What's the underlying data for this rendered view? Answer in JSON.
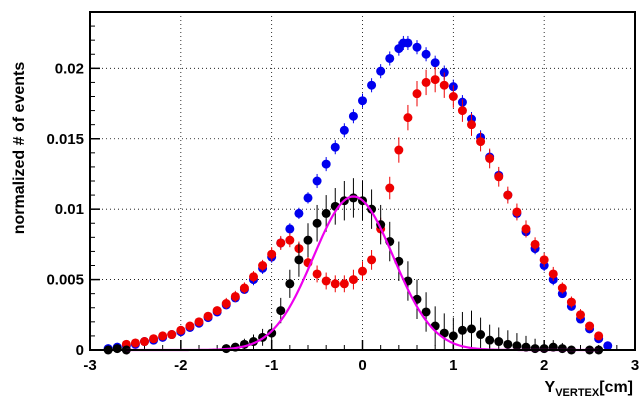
{
  "chart_data": {
    "type": "scatter",
    "title": "",
    "ylabel": "normalized # of events",
    "xlabel_main": "Y",
    "xlabel_sub": "VERTEX",
    "xlabel_unit": "[cm]",
    "xlim": [
      -3,
      3
    ],
    "ylim": [
      0,
      0.024
    ],
    "x_ticks": [
      "-3",
      "-2",
      "-1",
      "0",
      "1",
      "2",
      "3"
    ],
    "y_ticks": [
      "0",
      "0.005",
      "0.01",
      "0.015",
      "0.02"
    ],
    "grid": true,
    "colors": {
      "blue": "#0000ee",
      "red": "#ee0000",
      "black": "#000000",
      "fit": "#ee00ee"
    },
    "series": [
      {
        "color_key": "blue",
        "points": [
          [
            -2.8,
            0.0001,
            0.0003
          ],
          [
            -2.7,
            0.0002,
            0.0003
          ],
          [
            -2.6,
            0.0003,
            0.0003
          ],
          [
            -2.5,
            0.0004,
            0.0003
          ],
          [
            -2.4,
            0.0006,
            0.0003
          ],
          [
            -2.3,
            0.0007,
            0.0003
          ],
          [
            -2.2,
            0.0009,
            0.0003
          ],
          [
            -2.1,
            0.0011,
            0.0003
          ],
          [
            -2.0,
            0.0013,
            0.0003
          ],
          [
            -1.9,
            0.0016,
            0.0003
          ],
          [
            -1.8,
            0.0019,
            0.0003
          ],
          [
            -1.7,
            0.0023,
            0.0003
          ],
          [
            -1.6,
            0.0027,
            0.0003
          ],
          [
            -1.5,
            0.0032,
            0.0003
          ],
          [
            -1.4,
            0.0037,
            0.0003
          ],
          [
            -1.3,
            0.0043,
            0.0003
          ],
          [
            -1.2,
            0.005,
            0.0004
          ],
          [
            -1.1,
            0.0058,
            0.0004
          ],
          [
            -1.0,
            0.0066,
            0.0004
          ],
          [
            -0.9,
            0.0076,
            0.0004
          ],
          [
            -0.8,
            0.0086,
            0.0004
          ],
          [
            -0.7,
            0.0097,
            0.0004
          ],
          [
            -0.6,
            0.0108,
            0.0004
          ],
          [
            -0.5,
            0.012,
            0.0005
          ],
          [
            -0.4,
            0.0132,
            0.0005
          ],
          [
            -0.3,
            0.0144,
            0.0005
          ],
          [
            -0.2,
            0.0156,
            0.0005
          ],
          [
            -0.1,
            0.0166,
            0.0005
          ],
          [
            0.0,
            0.0177,
            0.0005
          ],
          [
            0.1,
            0.0188,
            0.0005
          ],
          [
            0.2,
            0.0198,
            0.0005
          ],
          [
            0.3,
            0.0207,
            0.0005
          ],
          [
            0.4,
            0.0214,
            0.0005
          ],
          [
            0.45,
            0.0218,
            0.0005
          ],
          [
            0.5,
            0.0218,
            0.0005
          ],
          [
            0.6,
            0.0215,
            0.0005
          ],
          [
            0.7,
            0.021,
            0.0005
          ],
          [
            0.8,
            0.0204,
            0.0005
          ],
          [
            0.9,
            0.0197,
            0.0005
          ],
          [
            1.0,
            0.0187,
            0.0005
          ],
          [
            1.1,
            0.0176,
            0.0005
          ],
          [
            1.2,
            0.0164,
            0.0005
          ],
          [
            1.3,
            0.0151,
            0.0005
          ],
          [
            1.4,
            0.0137,
            0.0005
          ],
          [
            1.5,
            0.0124,
            0.0004
          ],
          [
            1.6,
            0.011,
            0.0004
          ],
          [
            1.7,
            0.0097,
            0.0004
          ],
          [
            1.8,
            0.0084,
            0.0004
          ],
          [
            1.9,
            0.0072,
            0.0004
          ],
          [
            2.0,
            0.006,
            0.0004
          ],
          [
            2.1,
            0.005,
            0.0004
          ],
          [
            2.2,
            0.004,
            0.0003
          ],
          [
            2.3,
            0.0031,
            0.0003
          ],
          [
            2.4,
            0.0022,
            0.0003
          ],
          [
            2.5,
            0.0015,
            0.0003
          ],
          [
            2.6,
            0.0008,
            0.0003
          ],
          [
            2.7,
            0.0003,
            0.0003
          ]
        ]
      },
      {
        "color_key": "red",
        "points": [
          [
            -2.6,
            0.0004,
            0.0003
          ],
          [
            -2.5,
            0.0005,
            0.0003
          ],
          [
            -2.4,
            0.0006,
            0.0003
          ],
          [
            -2.3,
            0.0008,
            0.0003
          ],
          [
            -2.2,
            0.001,
            0.0003
          ],
          [
            -2.1,
            0.0011,
            0.0003
          ],
          [
            -2.0,
            0.0014,
            0.0003
          ],
          [
            -1.9,
            0.0017,
            0.0003
          ],
          [
            -1.8,
            0.002,
            0.0003
          ],
          [
            -1.7,
            0.0024,
            0.0003
          ],
          [
            -1.6,
            0.0028,
            0.0003
          ],
          [
            -1.5,
            0.0033,
            0.0004
          ],
          [
            -1.4,
            0.0038,
            0.0004
          ],
          [
            -1.3,
            0.0044,
            0.0004
          ],
          [
            -1.2,
            0.0052,
            0.0004
          ],
          [
            -1.1,
            0.006,
            0.0004
          ],
          [
            -1.0,
            0.0068,
            0.0005
          ],
          [
            -0.9,
            0.0076,
            0.0005
          ],
          [
            -0.8,
            0.0078,
            0.0005
          ],
          [
            -0.7,
            0.0072,
            0.0005
          ],
          [
            -0.6,
            0.0062,
            0.0006
          ],
          [
            -0.5,
            0.0054,
            0.0006
          ],
          [
            -0.4,
            0.0049,
            0.0006
          ],
          [
            -0.3,
            0.0047,
            0.0006
          ],
          [
            -0.2,
            0.0047,
            0.0006
          ],
          [
            -0.1,
            0.005,
            0.0007
          ],
          [
            0.0,
            0.0056,
            0.0007
          ],
          [
            0.1,
            0.0064,
            0.0007
          ],
          [
            0.2,
            0.0086,
            0.0008
          ],
          [
            0.3,
            0.0115,
            0.0008
          ],
          [
            0.4,
            0.0142,
            0.0009
          ],
          [
            0.5,
            0.0165,
            0.0009
          ],
          [
            0.6,
            0.0182,
            0.0009
          ],
          [
            0.7,
            0.019,
            0.0009
          ],
          [
            0.8,
            0.0192,
            0.0009
          ],
          [
            0.9,
            0.0188,
            0.0009
          ],
          [
            1.0,
            0.018,
            0.0008
          ],
          [
            1.1,
            0.017,
            0.0008
          ],
          [
            1.2,
            0.016,
            0.0008
          ],
          [
            1.3,
            0.0148,
            0.0007
          ],
          [
            1.4,
            0.0136,
            0.0007
          ],
          [
            1.5,
            0.0123,
            0.0007
          ],
          [
            1.6,
            0.011,
            0.0006
          ],
          [
            1.7,
            0.0098,
            0.0006
          ],
          [
            1.8,
            0.0086,
            0.0006
          ],
          [
            1.9,
            0.0075,
            0.0005
          ],
          [
            2.0,
            0.0064,
            0.0005
          ],
          [
            2.1,
            0.0054,
            0.0005
          ],
          [
            2.2,
            0.0044,
            0.0004
          ],
          [
            2.3,
            0.0034,
            0.0004
          ],
          [
            2.4,
            0.0025,
            0.0004
          ],
          [
            2.5,
            0.0017,
            0.0003
          ],
          [
            2.6,
            0.001,
            0.0003
          ]
        ]
      },
      {
        "color_key": "black",
        "points": [
          [
            -2.8,
            0.0,
            0.0002
          ],
          [
            -2.7,
            0.0001,
            0.0002
          ],
          [
            -2.6,
            0.0,
            0.0002
          ],
          [
            -1.5,
            0.0001,
            0.0003
          ],
          [
            -1.4,
            0.0002,
            0.0003
          ],
          [
            -1.3,
            0.0004,
            0.0004
          ],
          [
            -1.2,
            0.0006,
            0.0005
          ],
          [
            -1.1,
            0.0009,
            0.0006
          ],
          [
            -1.0,
            0.0012,
            0.0007
          ],
          [
            -0.9,
            0.0028,
            0.0009
          ],
          [
            -0.8,
            0.0047,
            0.001
          ],
          [
            -0.7,
            0.0064,
            0.0012
          ],
          [
            -0.6,
            0.0078,
            0.0012
          ],
          [
            -0.5,
            0.009,
            0.0013
          ],
          [
            -0.4,
            0.0097,
            0.0013
          ],
          [
            -0.3,
            0.0102,
            0.0013
          ],
          [
            -0.2,
            0.0106,
            0.0014
          ],
          [
            -0.1,
            0.0108,
            0.0014
          ],
          [
            0.0,
            0.0106,
            0.0014
          ],
          [
            0.1,
            0.01,
            0.0014
          ],
          [
            0.2,
            0.0089,
            0.0014
          ],
          [
            0.3,
            0.0077,
            0.0014
          ],
          [
            0.4,
            0.0063,
            0.0014
          ],
          [
            0.5,
            0.0049,
            0.0014
          ],
          [
            0.6,
            0.0036,
            0.0014
          ],
          [
            0.7,
            0.0027,
            0.0014
          ],
          [
            0.8,
            0.0017,
            0.0014
          ],
          [
            0.9,
            0.0012,
            0.0014
          ],
          [
            1.0,
            0.001,
            0.0013
          ],
          [
            1.1,
            0.0014,
            0.0013
          ],
          [
            1.2,
            0.0015,
            0.0013
          ],
          [
            1.3,
            0.0011,
            0.0012
          ],
          [
            1.4,
            0.0007,
            0.0011
          ],
          [
            1.5,
            0.0006,
            0.001
          ],
          [
            1.6,
            0.0004,
            0.001
          ],
          [
            1.7,
            0.0003,
            0.0009
          ],
          [
            1.8,
            0.0002,
            0.0008
          ],
          [
            1.9,
            0.0001,
            0.0007
          ],
          [
            2.0,
            0.0001,
            0.0006
          ],
          [
            2.1,
            0.0002,
            0.0005
          ],
          [
            2.2,
            0.0001,
            0.0004
          ],
          [
            2.3,
            0.0,
            0.0003
          ],
          [
            2.5,
            0.0,
            0.0002
          ],
          [
            2.6,
            0.0,
            0.0002
          ]
        ]
      }
    ],
    "fit": {
      "color_key": "fit",
      "amplitude": 0.0109,
      "mean": -0.1,
      "sigma": 0.44,
      "x_range": [
        -2.6,
        2.6
      ]
    }
  }
}
